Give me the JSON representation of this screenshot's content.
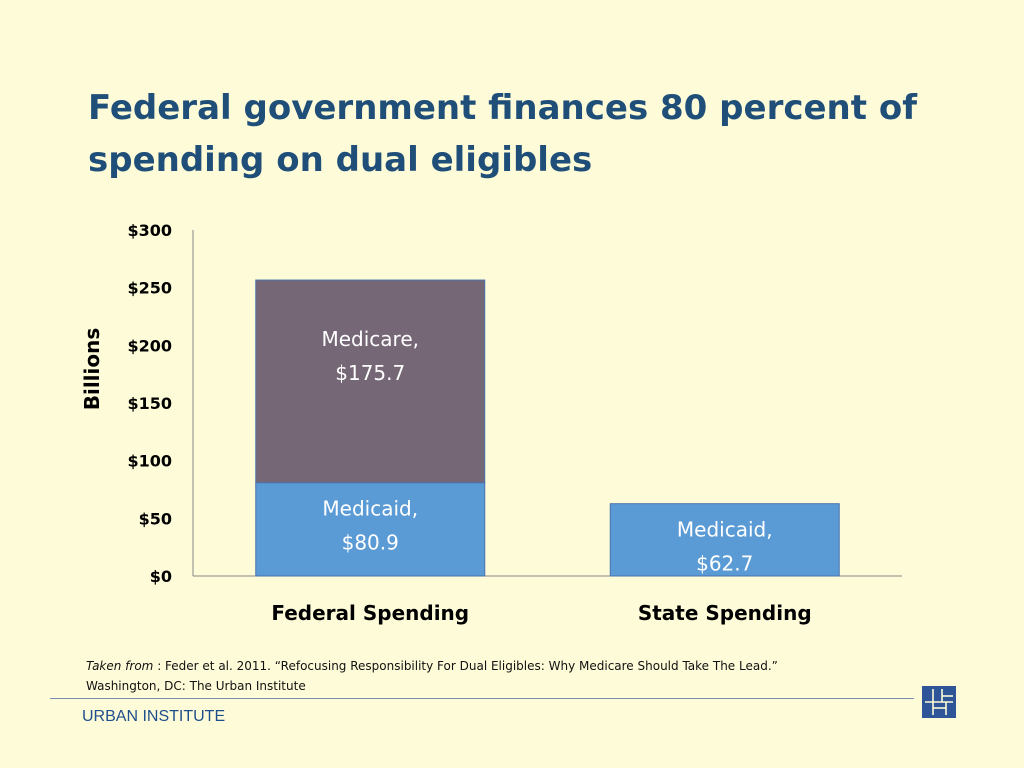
{
  "slide": {
    "title_line1": "Federal government finances 80 percent of",
    "title_line2": "spending on dual eligibles",
    "source_prefix": "Taken from",
    "source_line1_rest": " : Feder et al. 2011. “Refocusing Responsibility For Dual Eligibles: Why Medicare Should Take The Lead.”",
    "source_line2": "Washington, DC: The Urban Institute",
    "organization": "URBAN INSTITUTE"
  },
  "chart_data": {
    "type": "bar",
    "stacked": true,
    "categories": [
      "Federal Spending",
      "State Spending"
    ],
    "series": [
      {
        "name": "Medicaid",
        "values": [
          80.9,
          62.7
        ],
        "color": "#5b9bd5",
        "labels": [
          [
            "Medicaid,",
            "$80.9"
          ],
          [
            "Medicaid,",
            "$62.7"
          ]
        ]
      },
      {
        "name": "Medicare",
        "values": [
          175.7,
          null
        ],
        "color": "#766777",
        "labels": [
          [
            "Medicare,",
            "$175.7"
          ],
          null
        ]
      }
    ],
    "ylabel": "Billions",
    "ylim": [
      0,
      300
    ],
    "yticks": [
      0,
      50,
      100,
      150,
      200,
      250,
      300
    ],
    "ytick_labels": [
      "$0",
      "$50",
      "$100",
      "$150",
      "$200",
      "$250",
      "$300"
    ],
    "grid": false,
    "legend": "none"
  },
  "colors": {
    "background": "#fefcd8",
    "title": "#1f4e79",
    "medicaid": "#5b9bd5",
    "medicare": "#766777",
    "bar_border": "#4a72b0",
    "axis": "#888888",
    "organization": "#1f4e8c"
  },
  "icons": {
    "logo": "urban-institute-logo"
  }
}
